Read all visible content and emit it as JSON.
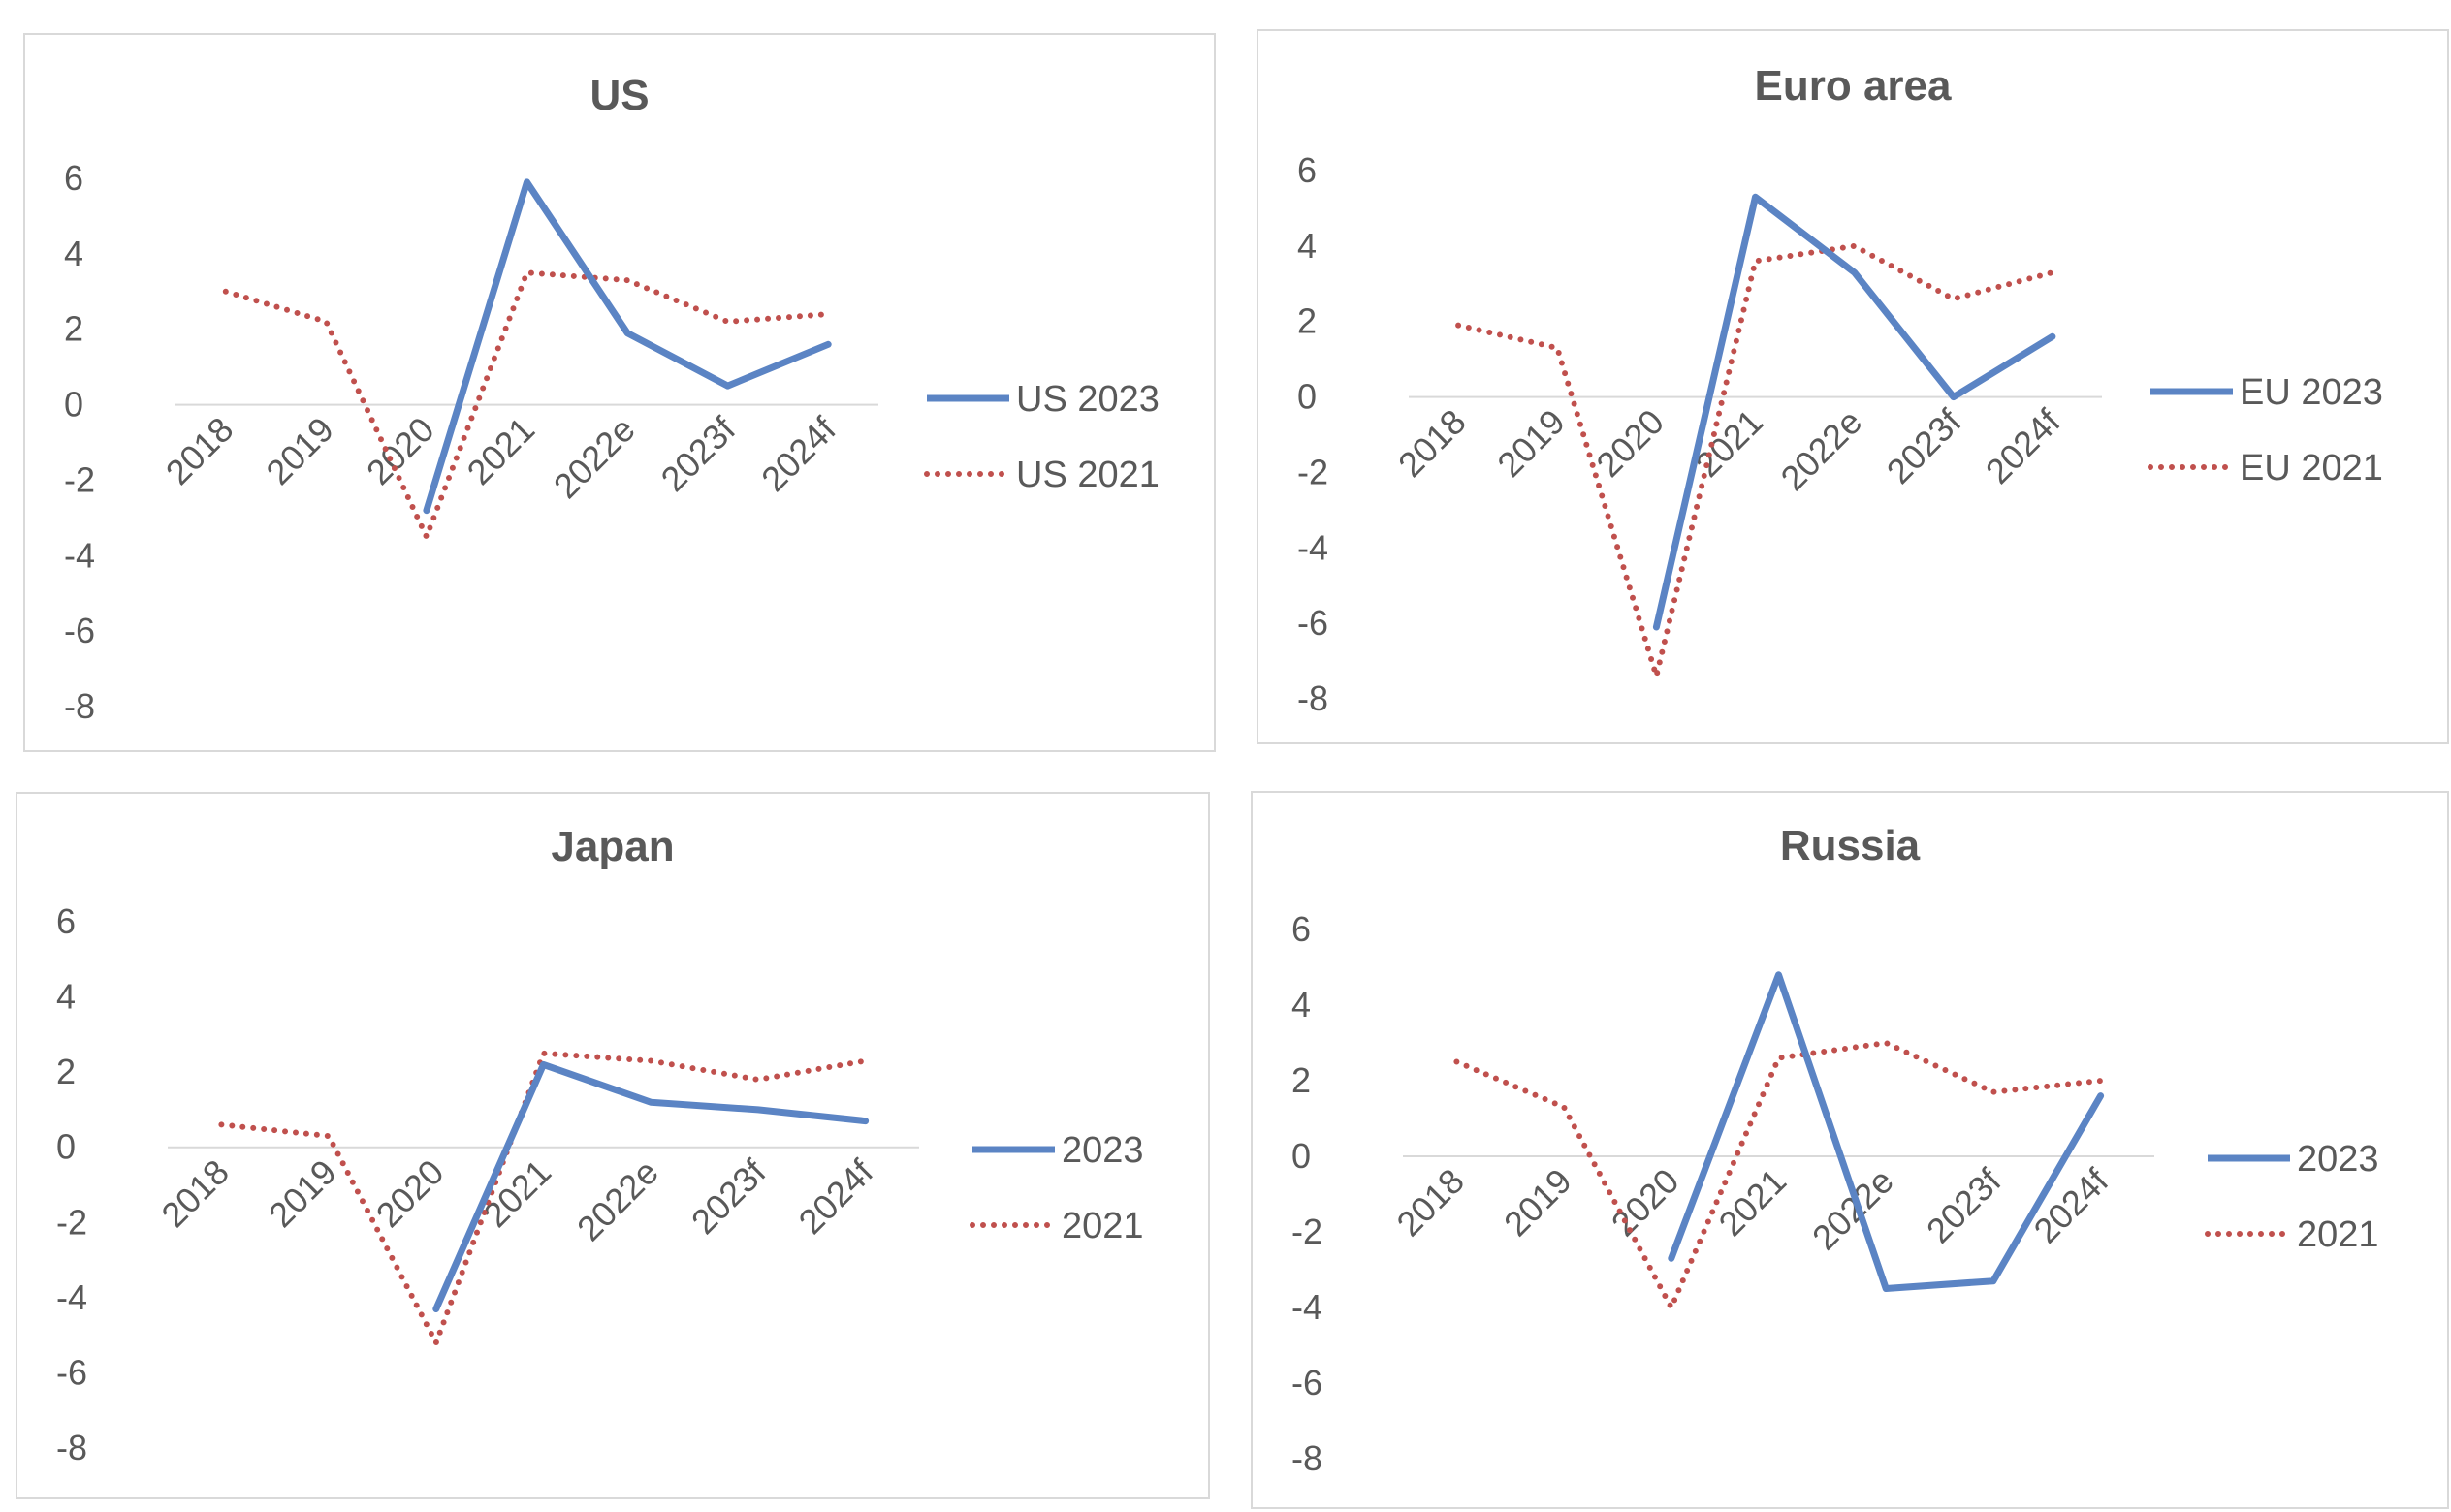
{
  "colors": {
    "solid": "#5b84c4",
    "dotted": "#c0504d",
    "axis": "#d9d9d9",
    "text": "#595959"
  },
  "chart_data": [
    {
      "type": "line",
      "title": "US",
      "categories": [
        "2018",
        "2019",
        "2020",
        "2021",
        "2022e",
        "2023f",
        "2024f"
      ],
      "y_ticks": [
        6,
        4,
        2,
        0,
        -2,
        -4,
        -6,
        -8
      ],
      "ylim": [
        -8,
        6
      ],
      "legend_position": "right",
      "series": [
        {
          "name": "US 2023",
          "style": "solid",
          "values": [
            null,
            null,
            -2.8,
            5.9,
            1.9,
            0.5,
            1.6
          ]
        },
        {
          "name": "US 2021",
          "style": "dotted",
          "values": [
            3.0,
            2.2,
            -3.5,
            3.5,
            3.3,
            2.2,
            2.4
          ]
        }
      ]
    },
    {
      "type": "line",
      "title": "Euro area",
      "categories": [
        "2018",
        "2019",
        "2020",
        "2021",
        "2022e",
        "2023f",
        "2024f"
      ],
      "y_ticks": [
        6,
        4,
        2,
        0,
        -2,
        -4,
        -6,
        -8
      ],
      "ylim": [
        -8,
        6
      ],
      "legend_position": "right",
      "series": [
        {
          "name": "EU 2023",
          "style": "solid",
          "values": [
            null,
            null,
            -6.1,
            5.3,
            3.3,
            0.0,
            1.6
          ]
        },
        {
          "name": "EU 2021",
          "style": "dotted",
          "values": [
            1.9,
            1.3,
            -7.4,
            3.6,
            4.0,
            2.6,
            3.3
          ]
        }
      ]
    },
    {
      "type": "line",
      "title": "Japan",
      "categories": [
        "2018",
        "2019",
        "2020",
        "2021",
        "2022e",
        "2023f",
        "2024f"
      ],
      "y_ticks": [
        6,
        4,
        2,
        0,
        -2,
        -4,
        -6,
        -8
      ],
      "ylim": [
        -8,
        6
      ],
      "legend_position": "right",
      "series": [
        {
          "name": "2023",
          "style": "solid",
          "values": [
            null,
            null,
            -4.3,
            2.2,
            1.2,
            1.0,
            0.7
          ]
        },
        {
          "name": "2021",
          "style": "dotted",
          "values": [
            0.6,
            0.3,
            -5.2,
            2.5,
            2.3,
            1.8,
            2.3
          ]
        }
      ]
    },
    {
      "type": "line",
      "title": "Russia",
      "categories": [
        "2018",
        "2019",
        "2020",
        "2021",
        "2022e",
        "2023f",
        "2024f"
      ],
      "y_ticks": [
        6,
        4,
        2,
        0,
        -2,
        -4,
        -6,
        -8
      ],
      "ylim": [
        -8,
        6
      ],
      "legend_position": "right",
      "series": [
        {
          "name": "2023",
          "style": "solid",
          "values": [
            null,
            null,
            -2.7,
            4.8,
            -3.5,
            -3.3,
            1.6
          ]
        },
        {
          "name": "2021",
          "style": "dotted",
          "values": [
            2.5,
            1.3,
            -4.0,
            2.6,
            3.0,
            1.7,
            2.0
          ]
        }
      ]
    }
  ]
}
